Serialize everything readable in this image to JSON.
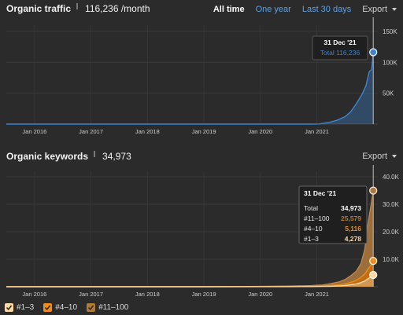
{
  "traffic": {
    "title": "Organic traffic",
    "value": "116,236 /month",
    "tabs": [
      "All time",
      "One year",
      "Last 30 days"
    ],
    "export_label": "Export"
  },
  "keywords": {
    "title": "Organic keywords",
    "value": "34,973",
    "export_label": "Export"
  },
  "colors": {
    "traffic": "#3d85d1",
    "top3": "#fcd8a4",
    "pos4_10": "#f08c1c",
    "pos11_100": "#b07a3c"
  },
  "chart_data": [
    {
      "type": "area",
      "name": "organic-traffic",
      "x_ticks": [
        "Jan 2016",
        "Jan 2017",
        "Jan 2018",
        "Jan 2019",
        "Jan 2020",
        "Jan 2021"
      ],
      "y_ticks": [
        "50K",
        "100K",
        "150K"
      ],
      "ylim": [
        0,
        160000
      ],
      "xlim": [
        2015.5,
        2022.08
      ],
      "x": [
        2015.5,
        2016,
        2017,
        2018,
        2019,
        2020,
        2020.5,
        2020.9,
        2021.05,
        2021.2,
        2021.35,
        2021.5,
        2021.6,
        2021.7,
        2021.8,
        2021.87,
        2021.93,
        2021.97,
        2021.999
      ],
      "values": [
        0,
        0,
        0,
        0,
        0,
        0,
        0,
        0,
        200,
        2500,
        6000,
        12000,
        20000,
        33000,
        48000,
        62000,
        85000,
        88000,
        116236
      ],
      "tooltip": {
        "date": "31 Dec '21",
        "label": "Total 116,236"
      }
    },
    {
      "type": "area",
      "name": "organic-keywords",
      "x_ticks": [
        "Jan 2016",
        "Jan 2017",
        "Jan 2018",
        "Jan 2019",
        "Jan 2020",
        "Jan 2021"
      ],
      "y_ticks": [
        "10.0K",
        "20.0K",
        "30.0K",
        "40.0K"
      ],
      "ylim": [
        0,
        42000
      ],
      "xlim": [
        2015.5,
        2022.08
      ],
      "x": [
        2015.5,
        2016,
        2017,
        2018,
        2019,
        2020,
        2020.5,
        2020.9,
        2021.1,
        2021.25,
        2021.4,
        2021.5,
        2021.6,
        2021.7,
        2021.78,
        2021.85,
        2021.9,
        2021.95,
        2021.999
      ],
      "series": [
        {
          "name": "#11–100",
          "values": [
            0,
            0,
            0,
            0,
            0,
            100,
            150,
            250,
            400,
            700,
            1100,
            1600,
            2400,
            3400,
            5000,
            9000,
            16000,
            21000,
            25579
          ]
        },
        {
          "name": "#4–10",
          "values": [
            0,
            0,
            0,
            0,
            0,
            30,
            60,
            100,
            160,
            250,
            400,
            600,
            900,
            1300,
            1900,
            2600,
            3400,
            4100,
            5116
          ]
        },
        {
          "name": "#1–3",
          "values": [
            0,
            0,
            0,
            0,
            0,
            20,
            40,
            70,
            110,
            180,
            300,
            450,
            700,
            1000,
            1500,
            2100,
            2800,
            3500,
            4278
          ]
        }
      ],
      "tooltip": {
        "date": "31 Dec '21",
        "rows": [
          {
            "label": "Total",
            "value": "34,973"
          },
          {
            "label": "#11–100",
            "value": "25,579"
          },
          {
            "label": "#4–10",
            "value": "5,116"
          },
          {
            "label": "#1–3",
            "value": "4,278"
          }
        ]
      }
    }
  ],
  "legend": [
    "#1–3",
    "#4–10",
    "#11–100"
  ]
}
